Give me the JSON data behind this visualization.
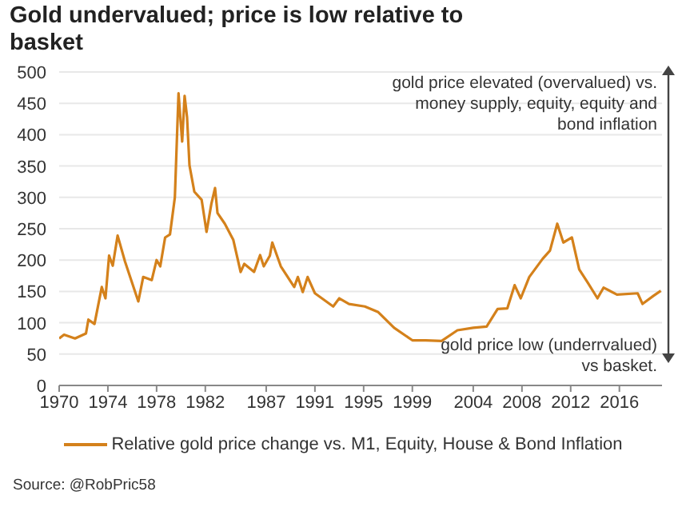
{
  "chart_data": {
    "type": "line",
    "title": "Gold undervalued; price is low relative to basket",
    "x": [
      1970,
      1970.4,
      1971.3,
      1972.2,
      1972.4,
      1972.9,
      1973.5,
      1973.8,
      1974.1,
      1974.4,
      1974.8,
      1975.4,
      1976.5,
      1976.9,
      1977.6,
      1978.0,
      1978.3,
      1978.7,
      1979.1,
      1979.5,
      1979.8,
      1980.1,
      1980.3,
      1980.5,
      1980.7,
      1981.1,
      1981.7,
      1982.1,
      1982.5,
      1982.8,
      1983.0,
      1983.6,
      1984.3,
      1984.9,
      1985.2,
      1986.0,
      1986.5,
      1986.8,
      1987.3,
      1987.5,
      1988.2,
      1989.3,
      1989.6,
      1990.0,
      1990.4,
      1991.0,
      1992.5,
      1993.0,
      1993.8,
      1995.1,
      1996.2,
      1997.5,
      1999.0,
      2000.1,
      2001.4,
      2002.7,
      2004.0,
      2005.1,
      2006.0,
      2006.8,
      2007.4,
      2007.9,
      2008.6,
      2009.7,
      2010.3,
      2010.9,
      2011.4,
      2012.1,
      2012.7,
      2013.4,
      2014.2,
      2014.7,
      2015.8,
      2017.5,
      2017.9,
      2018.8,
      2019.4
    ],
    "series": [
      {
        "name": "Relative gold price change vs. M1, Equity, House & Bond Inflation",
        "color": "#d4811b",
        "values": [
          75,
          81,
          75,
          83,
          105,
          98,
          157,
          139,
          207,
          191,
          239,
          198,
          134,
          173,
          168,
          200,
          190,
          236,
          241,
          300,
          466,
          389,
          462,
          428,
          351,
          309,
          296,
          245,
          290,
          315,
          275,
          258,
          232,
          181,
          194,
          181,
          208,
          190,
          207,
          228,
          190,
          157,
          173,
          149,
          173,
          147,
          126,
          139,
          130,
          126,
          117,
          92,
          72,
          72,
          71,
          88,
          92,
          94,
          122,
          123,
          160,
          139,
          173,
          202,
          215,
          258,
          228,
          236,
          185,
          164,
          139,
          156,
          145,
          147,
          130,
          143,
          151
        ]
      }
    ],
    "xlim": [
      1970,
      2019.5
    ],
    "xticks": [
      1970,
      1974,
      1978,
      1982,
      1987,
      1991,
      1995,
      1999,
      2004,
      2008,
      2012,
      2016
    ],
    "ylim": [
      0,
      500
    ],
    "yticks": [
      0,
      50,
      100,
      150,
      200,
      250,
      300,
      350,
      400,
      450,
      500
    ],
    "grid": "y",
    "legend": "bottom",
    "marker": "none",
    "line_style": "solid",
    "annotations": [
      "gold price elevated (overvalued) vs. money supply, equity, equity and bond inflation",
      "gold price low (underrvalued) vs basket.",
      "Source: @RobPric58"
    ]
  }
}
